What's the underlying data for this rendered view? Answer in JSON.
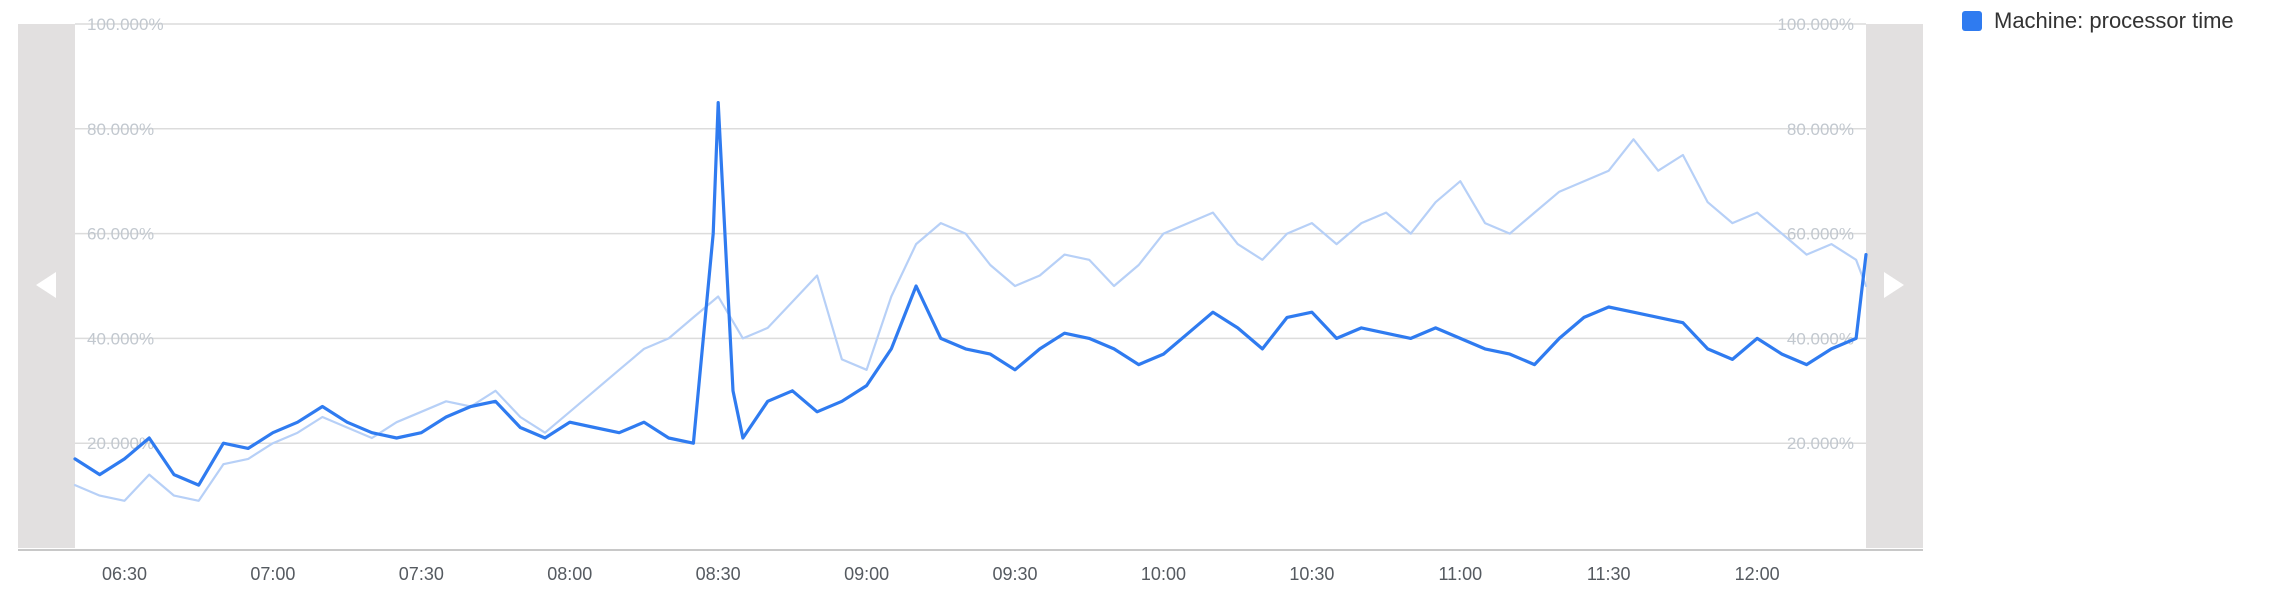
{
  "legend": {
    "label": "Machine: processor time"
  },
  "colors": {
    "primary": "#2f7bf0",
    "secondary": "#b7d0f7",
    "grid": "#dcdcdc",
    "side_panel": "#e2e0e0"
  },
  "icons": {
    "prev": "chevron-left-icon",
    "next": "chevron-right-icon"
  },
  "chart_data": {
    "type": "line",
    "x_range": [
      "06:20",
      "12:22"
    ],
    "ylim": [
      0,
      100
    ],
    "y_ticks": [
      "20.000%",
      "40.000%",
      "60.000%",
      "80.000%",
      "100.000%"
    ],
    "x_ticks": [
      "06:30",
      "07:00",
      "07:30",
      "08:00",
      "08:30",
      "09:00",
      "09:30",
      "10:00",
      "10:30",
      "11:00",
      "11:30",
      "12:00"
    ],
    "legend_position": "top-right",
    "grid": true,
    "series": [
      {
        "name": "Machine: processor time",
        "color": "#2f7bf0",
        "points": [
          [
            "06:20",
            17
          ],
          [
            "06:25",
            14
          ],
          [
            "06:30",
            17
          ],
          [
            "06:35",
            21
          ],
          [
            "06:40",
            14
          ],
          [
            "06:45",
            12
          ],
          [
            "06:50",
            20
          ],
          [
            "06:55",
            19
          ],
          [
            "07:00",
            22
          ],
          [
            "07:05",
            24
          ],
          [
            "07:10",
            27
          ],
          [
            "07:15",
            24
          ],
          [
            "07:20",
            22
          ],
          [
            "07:25",
            21
          ],
          [
            "07:30",
            22
          ],
          [
            "07:35",
            25
          ],
          [
            "07:40",
            27
          ],
          [
            "07:45",
            28
          ],
          [
            "07:50",
            23
          ],
          [
            "07:55",
            21
          ],
          [
            "08:00",
            24
          ],
          [
            "08:05",
            23
          ],
          [
            "08:10",
            22
          ],
          [
            "08:15",
            24
          ],
          [
            "08:20",
            21
          ],
          [
            "08:25",
            20
          ],
          [
            "08:29",
            60
          ],
          [
            "08:30",
            85
          ],
          [
            "08:33",
            30
          ],
          [
            "08:35",
            21
          ],
          [
            "08:40",
            28
          ],
          [
            "08:45",
            30
          ],
          [
            "08:50",
            26
          ],
          [
            "08:55",
            28
          ],
          [
            "09:00",
            31
          ],
          [
            "09:05",
            38
          ],
          [
            "09:10",
            50
          ],
          [
            "09:15",
            40
          ],
          [
            "09:20",
            38
          ],
          [
            "09:25",
            37
          ],
          [
            "09:30",
            34
          ],
          [
            "09:35",
            38
          ],
          [
            "09:40",
            41
          ],
          [
            "09:45",
            40
          ],
          [
            "09:50",
            38
          ],
          [
            "09:55",
            35
          ],
          [
            "10:00",
            37
          ],
          [
            "10:05",
            41
          ],
          [
            "10:10",
            45
          ],
          [
            "10:15",
            42
          ],
          [
            "10:20",
            38
          ],
          [
            "10:25",
            44
          ],
          [
            "10:30",
            45
          ],
          [
            "10:35",
            40
          ],
          [
            "10:40",
            42
          ],
          [
            "10:45",
            41
          ],
          [
            "10:50",
            40
          ],
          [
            "10:55",
            42
          ],
          [
            "11:00",
            40
          ],
          [
            "11:05",
            38
          ],
          [
            "11:10",
            37
          ],
          [
            "11:15",
            35
          ],
          [
            "11:20",
            40
          ],
          [
            "11:25",
            44
          ],
          [
            "11:30",
            46
          ],
          [
            "11:35",
            45
          ],
          [
            "11:40",
            44
          ],
          [
            "11:45",
            43
          ],
          [
            "11:50",
            38
          ],
          [
            "11:55",
            36
          ],
          [
            "12:00",
            40
          ],
          [
            "12:05",
            37
          ],
          [
            "12:10",
            35
          ],
          [
            "12:15",
            38
          ],
          [
            "12:20",
            40
          ],
          [
            "12:22",
            56
          ]
        ]
      },
      {
        "name": "",
        "color": "#b7d0f7",
        "points": [
          [
            "06:20",
            12
          ],
          [
            "06:25",
            10
          ],
          [
            "06:30",
            9
          ],
          [
            "06:35",
            14
          ],
          [
            "06:40",
            10
          ],
          [
            "06:45",
            9
          ],
          [
            "06:50",
            16
          ],
          [
            "06:55",
            17
          ],
          [
            "07:00",
            20
          ],
          [
            "07:05",
            22
          ],
          [
            "07:10",
            25
          ],
          [
            "07:15",
            23
          ],
          [
            "07:20",
            21
          ],
          [
            "07:25",
            24
          ],
          [
            "07:30",
            26
          ],
          [
            "07:35",
            28
          ],
          [
            "07:40",
            27
          ],
          [
            "07:45",
            30
          ],
          [
            "07:50",
            25
          ],
          [
            "07:55",
            22
          ],
          [
            "08:00",
            26
          ],
          [
            "08:05",
            30
          ],
          [
            "08:10",
            34
          ],
          [
            "08:15",
            38
          ],
          [
            "08:20",
            40
          ],
          [
            "08:25",
            44
          ],
          [
            "08:30",
            48
          ],
          [
            "08:35",
            40
          ],
          [
            "08:40",
            42
          ],
          [
            "08:45",
            47
          ],
          [
            "08:50",
            52
          ],
          [
            "08:55",
            36
          ],
          [
            "09:00",
            34
          ],
          [
            "09:05",
            48
          ],
          [
            "09:10",
            58
          ],
          [
            "09:15",
            62
          ],
          [
            "09:20",
            60
          ],
          [
            "09:25",
            54
          ],
          [
            "09:30",
            50
          ],
          [
            "09:35",
            52
          ],
          [
            "09:40",
            56
          ],
          [
            "09:45",
            55
          ],
          [
            "09:50",
            50
          ],
          [
            "09:55",
            54
          ],
          [
            "10:00",
            60
          ],
          [
            "10:05",
            62
          ],
          [
            "10:10",
            64
          ],
          [
            "10:15",
            58
          ],
          [
            "10:20",
            55
          ],
          [
            "10:25",
            60
          ],
          [
            "10:30",
            62
          ],
          [
            "10:35",
            58
          ],
          [
            "10:40",
            62
          ],
          [
            "10:45",
            64
          ],
          [
            "10:50",
            60
          ],
          [
            "10:55",
            66
          ],
          [
            "11:00",
            70
          ],
          [
            "11:05",
            62
          ],
          [
            "11:10",
            60
          ],
          [
            "11:15",
            64
          ],
          [
            "11:20",
            68
          ],
          [
            "11:25",
            70
          ],
          [
            "11:30",
            72
          ],
          [
            "11:35",
            78
          ],
          [
            "11:40",
            72
          ],
          [
            "11:45",
            75
          ],
          [
            "11:50",
            66
          ],
          [
            "11:55",
            62
          ],
          [
            "12:00",
            64
          ],
          [
            "12:05",
            60
          ],
          [
            "12:10",
            56
          ],
          [
            "12:15",
            58
          ],
          [
            "12:20",
            55
          ],
          [
            "12:22",
            50
          ]
        ]
      }
    ]
  }
}
